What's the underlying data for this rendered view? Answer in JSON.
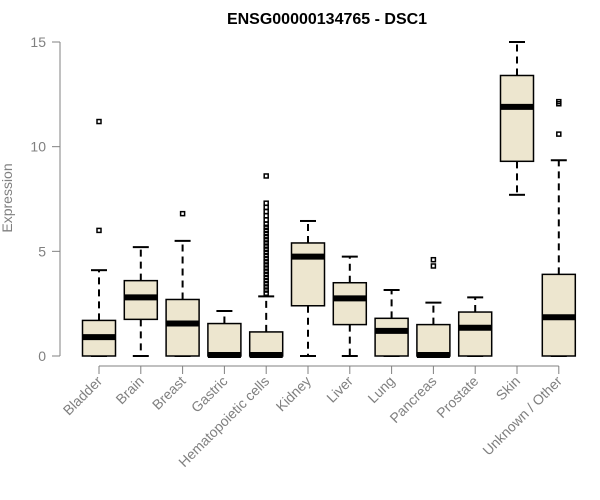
{
  "chart_data": {
    "type": "box",
    "title": "ENSG00000134765 - DSC1",
    "xlabel": "",
    "ylabel": "Expression",
    "ylim": [
      0,
      15
    ],
    "yticks": [
      0,
      5,
      10,
      15
    ],
    "grid": false,
    "legend": "none",
    "colors": {
      "box_fill": "#ede6cf",
      "box_stroke": "#000000",
      "axis": "#808080"
    },
    "categories": [
      "Bladder",
      "Brain",
      "Breast",
      "Gastric",
      "Hematopoietic cells",
      "Kidney",
      "Liver",
      "Lung",
      "Pancreas",
      "Prostate",
      "Skin",
      "Unknown / Other"
    ],
    "boxes": [
      {
        "category": "Bladder",
        "min": 0,
        "q1": 0,
        "median": 0.9,
        "q3": 1.7,
        "max": 4.1,
        "outliers": [
          6.0,
          11.2
        ]
      },
      {
        "category": "Brain",
        "min": 0,
        "q1": 1.75,
        "median": 2.8,
        "q3": 3.6,
        "max": 5.2,
        "outliers": []
      },
      {
        "category": "Breast",
        "min": 0,
        "q1": 0,
        "median": 1.55,
        "q3": 2.7,
        "max": 5.5,
        "outliers": [
          6.8
        ]
      },
      {
        "category": "Gastric",
        "min": 0,
        "q1": 0,
        "median": 0.05,
        "q3": 1.55,
        "max": 2.15,
        "outliers": []
      },
      {
        "category": "Hematopoietic cells",
        "min": 0,
        "q1": 0,
        "median": 0.05,
        "q3": 1.15,
        "max": 2.85,
        "outliers": [
          3.0,
          3.15,
          3.3,
          3.45,
          3.6,
          3.75,
          3.9,
          4.05,
          4.2,
          4.35,
          4.5,
          4.65,
          4.8,
          4.95,
          5.1,
          5.25,
          5.4,
          5.55,
          5.7,
          5.85,
          6.0,
          6.15,
          6.3,
          6.5,
          6.7,
          6.9,
          7.1,
          7.3,
          8.6
        ]
      },
      {
        "category": "Kidney",
        "min": 0,
        "q1": 2.4,
        "median": 4.75,
        "q3": 5.4,
        "max": 6.45,
        "outliers": []
      },
      {
        "category": "Liver",
        "min": 0,
        "q1": 1.5,
        "median": 2.75,
        "q3": 3.5,
        "max": 4.75,
        "outliers": []
      },
      {
        "category": "Lung",
        "min": 0,
        "q1": 0,
        "median": 1.2,
        "q3": 1.8,
        "max": 3.15,
        "outliers": []
      },
      {
        "category": "Pancreas",
        "min": 0,
        "q1": 0,
        "median": 0.05,
        "q3": 1.5,
        "max": 2.55,
        "outliers": [
          4.3,
          4.6
        ]
      },
      {
        "category": "Prostate",
        "min": 0,
        "q1": 0,
        "median": 1.35,
        "q3": 2.1,
        "max": 2.8,
        "outliers": []
      },
      {
        "category": "Skin",
        "min": 7.7,
        "q1": 9.3,
        "median": 11.9,
        "q3": 13.4,
        "max": 15.0,
        "outliers": []
      },
      {
        "category": "Unknown / Other",
        "min": 0,
        "q1": 0,
        "median": 1.85,
        "q3": 3.9,
        "max": 9.35,
        "outliers": [
          10.6,
          12.05,
          12.15
        ]
      }
    ]
  }
}
